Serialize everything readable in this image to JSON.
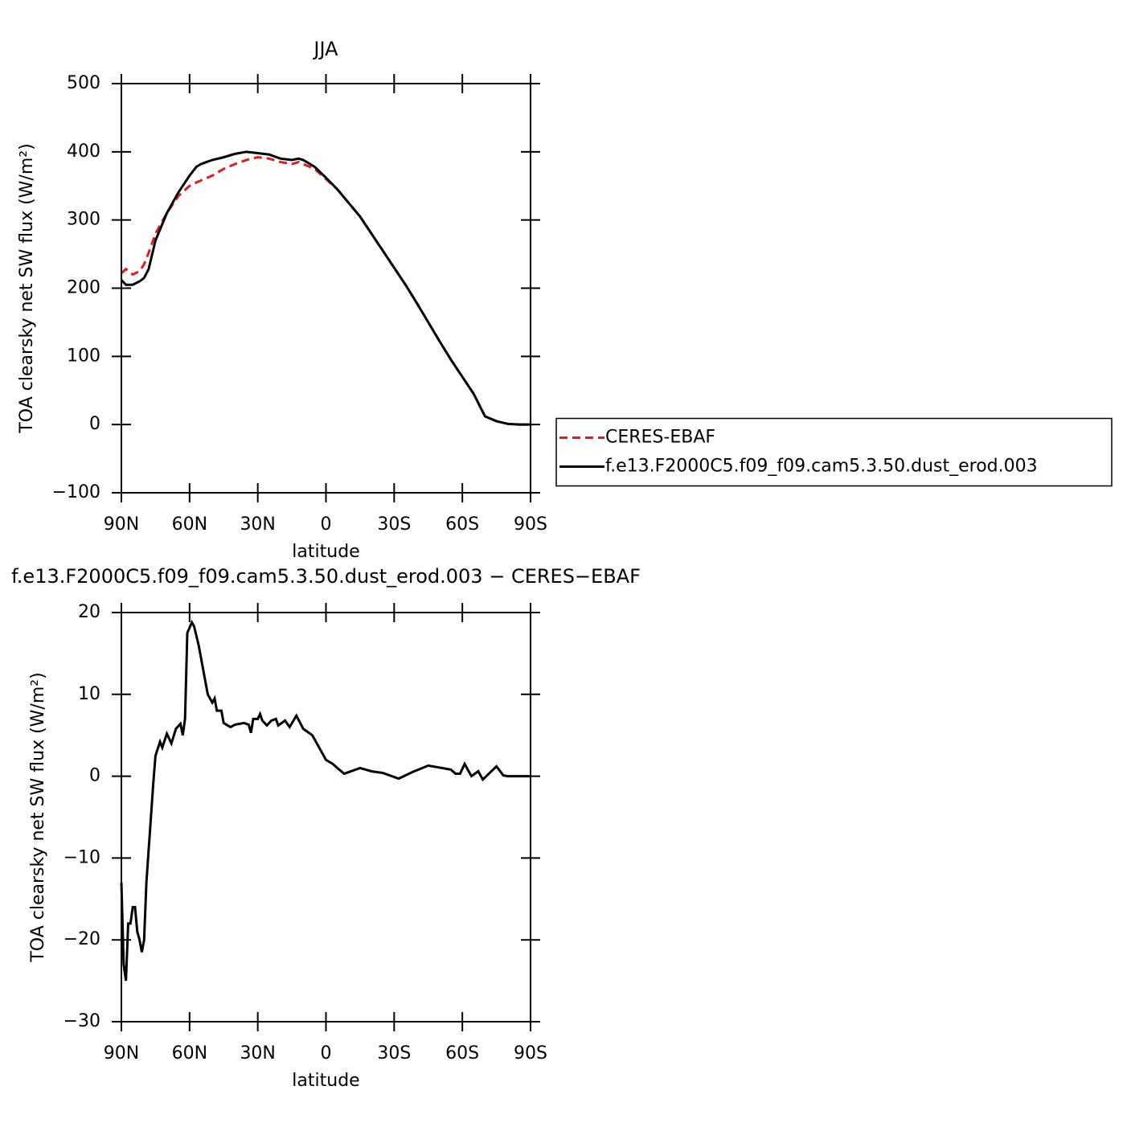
{
  "chart_data": [
    {
      "type": "line",
      "title": "JJA",
      "xlabel": "latitude",
      "ylabel": "TOA clearsky net SW flux (W/m²)",
      "x": [
        90,
        88,
        85,
        82,
        80,
        78,
        75,
        70,
        65,
        60,
        57,
        55,
        50,
        45,
        40,
        35,
        30,
        25,
        20,
        15,
        12,
        10,
        5,
        0,
        -5,
        -10,
        -15,
        -20,
        -25,
        -30,
        -35,
        -40,
        -45,
        -50,
        -55,
        -60,
        -65,
        -68,
        -70,
        -75,
        -80,
        -85,
        -90
      ],
      "series": [
        {
          "name": "CERES-EBAF",
          "color": "#e41a1c",
          "dash": "dashed",
          "values": [
            222,
            228,
            220,
            225,
            235,
            252,
            280,
            310,
            335,
            350,
            355,
            358,
            365,
            375,
            382,
            388,
            392,
            390,
            385,
            382,
            385,
            382,
            375,
            360,
            345,
            325,
            305,
            280,
            255,
            230,
            205,
            178,
            150,
            122,
            95,
            70,
            45,
            25,
            12,
            5,
            1,
            0,
            0
          ]
        },
        {
          "name": "f.e13.F2000C5.f09_f09.cam5.3.50.dust_erod.003",
          "color": "#000000",
          "dash": "solid",
          "values": [
            212,
            205,
            205,
            210,
            215,
            228,
            270,
            310,
            340,
            365,
            378,
            382,
            388,
            392,
            397,
            400,
            398,
            396,
            390,
            388,
            390,
            388,
            378,
            362,
            345,
            325,
            305,
            280,
            255,
            230,
            205,
            178,
            150,
            122,
            95,
            70,
            45,
            25,
            12,
            5,
            1,
            0,
            0
          ]
        }
      ],
      "xlim": [
        90,
        -90
      ],
      "xticks": [
        {
          "value": 90,
          "label": "90N"
        },
        {
          "value": 60,
          "label": "60N"
        },
        {
          "value": 30,
          "label": "30N"
        },
        0,
        {
          "value": -30,
          "label": "30S"
        },
        {
          "value": -60,
          "label": "60S"
        },
        {
          "value": -90,
          "label": "90S"
        }
      ],
      "ylim": [
        -100,
        500
      ],
      "yticks": [
        {
          "value": -100,
          "label": "−100"
        },
        0,
        100,
        200,
        300,
        400,
        500
      ],
      "legend": "right"
    },
    {
      "type": "line",
      "title": "f.e13.F2000C5.f09_f09.cam5.3.50.dust_erod.003 − CERES−EBAF",
      "xlabel": "latitude",
      "ylabel": "TOA clearsky net SW flux (W/m²)",
      "x": [
        90,
        89,
        88,
        87,
        86,
        85,
        84,
        83,
        82,
        81,
        80,
        79,
        77,
        76,
        75,
        73,
        72,
        70,
        68,
        66,
        64,
        63,
        62,
        61,
        59,
        58,
        56,
        54,
        52,
        50,
        49,
        48,
        46,
        45,
        42,
        40,
        36,
        34,
        33,
        32,
        30,
        29,
        28,
        26,
        24,
        22,
        21,
        18,
        16,
        13,
        10,
        6,
        4,
        2,
        0,
        -3,
        -5,
        -8,
        -15,
        -20,
        -25,
        -32,
        -38,
        -45,
        -55,
        -57,
        -59,
        -61,
        -64,
        -67,
        -69,
        -75,
        -78,
        -80,
        -90
      ],
      "series": [
        {
          "color": "#000000",
          "dash": "solid",
          "values": [
            -13,
            -23,
            -25,
            -18,
            -18,
            -16,
            -16,
            -19,
            -20,
            -21.5,
            -20,
            -13,
            -5,
            -1,
            2.5,
            4.2,
            3.5,
            5.2,
            4,
            5.8,
            6.4,
            5,
            7,
            17.5,
            18.8,
            18.3,
            16,
            13,
            10,
            9,
            9.5,
            8,
            8,
            6.5,
            6,
            6.3,
            6.5,
            6.3,
            5.3,
            7,
            7,
            7.6,
            6.8,
            6.2,
            6.8,
            7,
            6.2,
            6.8,
            6,
            7.4,
            5.8,
            5,
            4,
            3,
            2,
            1.5,
            1,
            0.3,
            1,
            0.6,
            0.4,
            -0.3,
            0.5,
            1.3,
            0.8,
            0.3,
            0.3,
            1.5,
            0,
            0.6,
            -0.4,
            1.2,
            0.1,
            0,
            0
          ]
        }
      ],
      "xlim": [
        90,
        -90
      ],
      "xticks": [
        {
          "value": 90,
          "label": "90N"
        },
        {
          "value": 60,
          "label": "60N"
        },
        {
          "value": 30,
          "label": "30N"
        },
        0,
        {
          "value": -30,
          "label": "30S"
        },
        {
          "value": -60,
          "label": "60S"
        },
        {
          "value": -90,
          "label": "90S"
        }
      ],
      "ylim": [
        -30,
        20
      ],
      "yticks": [
        {
          "value": -30,
          "label": "−30"
        },
        {
          "value": -20,
          "label": "−20"
        },
        {
          "value": -10,
          "label": "−10"
        },
        0,
        10,
        20
      ]
    }
  ]
}
